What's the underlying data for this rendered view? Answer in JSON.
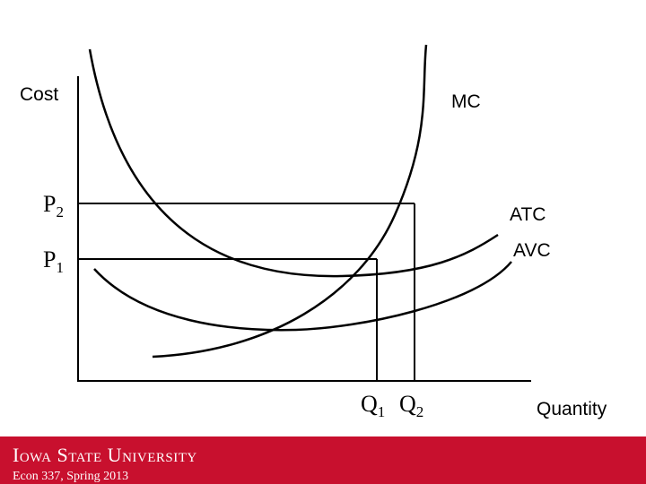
{
  "diagram": {
    "y_axis_label": "Cost",
    "x_axis_label": "Quantity",
    "curves": [
      {
        "label": "MC"
      },
      {
        "label": "ATC"
      },
      {
        "label": "AVC"
      }
    ],
    "prices": [
      {
        "base": "P",
        "sub": "2"
      },
      {
        "base": "P",
        "sub": "1"
      }
    ],
    "quantities": [
      {
        "base": "Q",
        "sub": "1"
      },
      {
        "base": "Q",
        "sub": "2"
      }
    ]
  },
  "footer": {
    "institution": "Iowa State University",
    "course": "Econ 337, Spring 2013"
  }
}
